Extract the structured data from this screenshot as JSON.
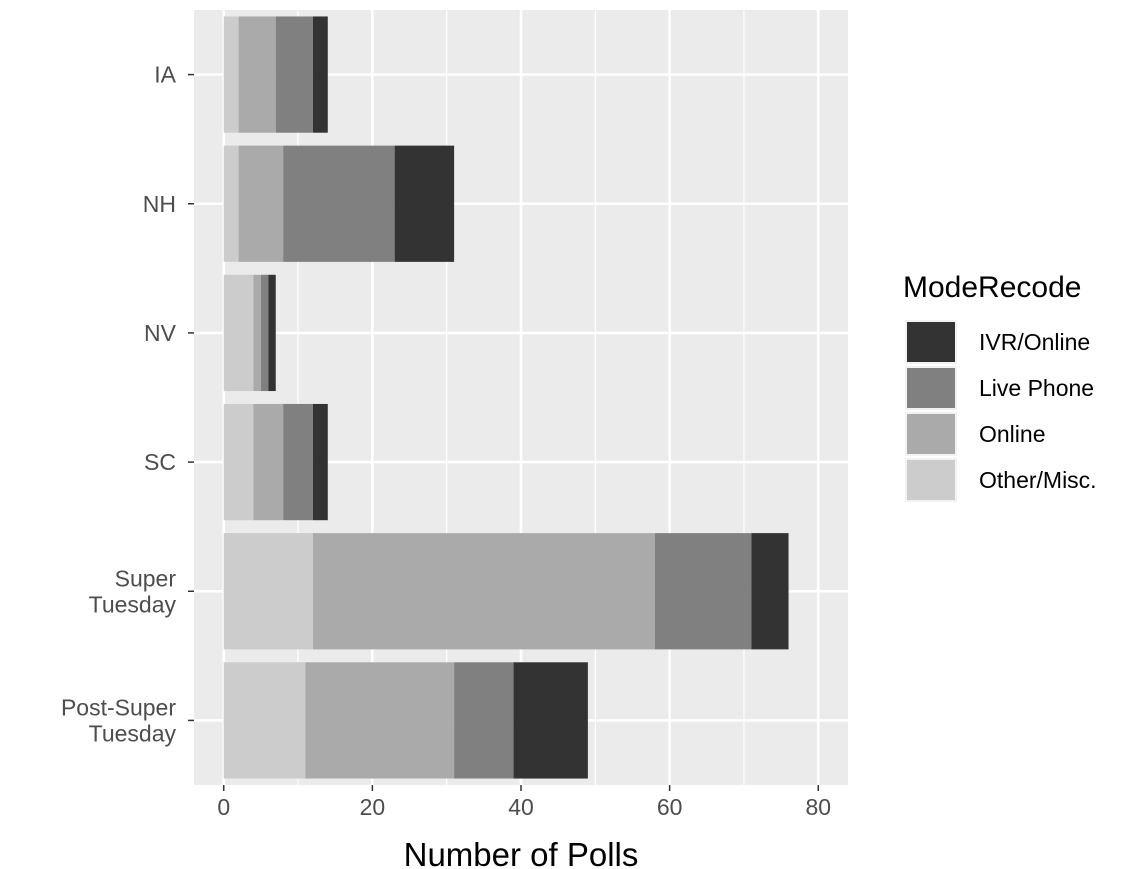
{
  "chart_data": {
    "type": "bar",
    "orientation": "horizontal",
    "stacked": true,
    "categories": [
      "IA",
      "NH",
      "NV",
      "SC",
      "Super Tuesday",
      "Post-Super Tuesday"
    ],
    "category_lines": [
      [
        "IA"
      ],
      [
        "NH"
      ],
      [
        "NV"
      ],
      [
        "SC"
      ],
      [
        "Super",
        "Tuesday"
      ],
      [
        "Post-Super",
        "Tuesday"
      ]
    ],
    "series": [
      {
        "name": "Other/Misc.",
        "values": [
          2,
          2,
          4,
          4,
          12,
          11
        ],
        "color": "#cccccc"
      },
      {
        "name": "Online",
        "values": [
          5,
          6,
          1,
          4,
          46,
          20
        ],
        "color": "#aaaaaa"
      },
      {
        "name": "Live Phone",
        "values": [
          5,
          15,
          1,
          4,
          13,
          8
        ],
        "color": "#808080"
      },
      {
        "name": "IVR/Online",
        "values": [
          2,
          8,
          1,
          2,
          5,
          10
        ],
        "color": "#333333"
      }
    ],
    "stack_order": [
      "Other/Misc.",
      "Online",
      "Live Phone",
      "IVR/Online"
    ],
    "legend_order": [
      "IVR/Online",
      "Live Phone",
      "Online",
      "Other/Misc."
    ],
    "xlabel": "Number of Polls",
    "ylabel": "",
    "xlim": [
      -4,
      84
    ],
    "xticks": [
      0,
      20,
      40,
      60,
      80
    ],
    "xtick_labels": [
      "0",
      "20",
      "40",
      "60",
      "80"
    ],
    "grid": true,
    "legend": {
      "title": "ModeRecode",
      "position": "right"
    },
    "background": "#ebebeb",
    "gridline_color": "#ffffff"
  }
}
